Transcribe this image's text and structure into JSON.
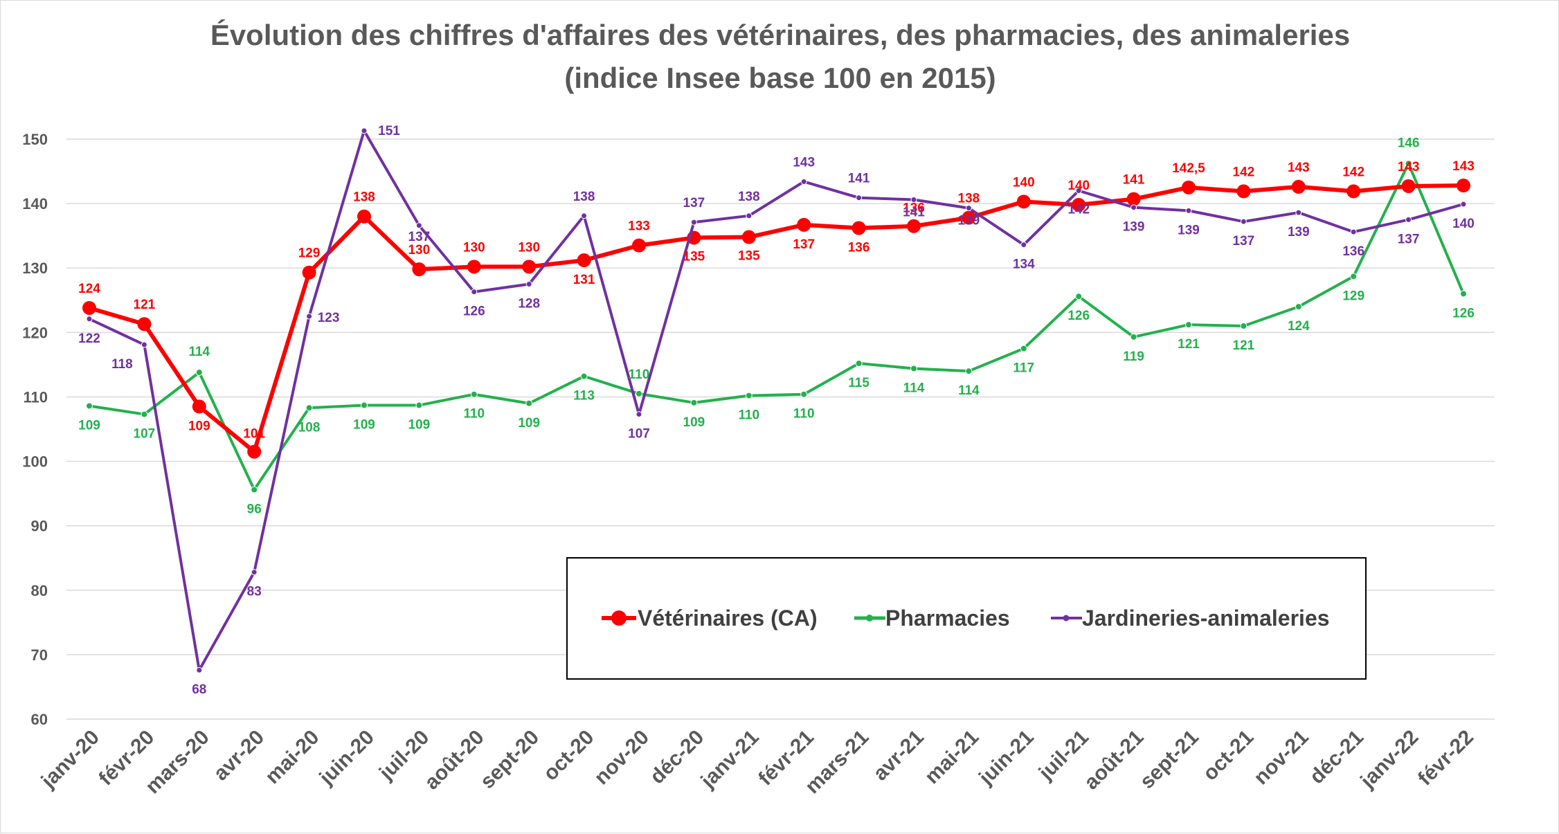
{
  "chart_data": {
    "type": "line",
    "title": "Évolution des chiffres d'affaires des vétérinaires, des pharmacies, des animaleries",
    "subtitle": "(indice Insee base 100 en 2015)",
    "categories": [
      "janv-20",
      "févr-20",
      "mars-20",
      "avr-20",
      "mai-20",
      "juin-20",
      "juil-20",
      "août-20",
      "sept-20",
      "oct-20",
      "nov-20",
      "déc-20",
      "janv-21",
      "févr-21",
      "mars-21",
      "avr-21",
      "mai-21",
      "juin-21",
      "juil-21",
      "août-21",
      "sept-21",
      "oct-21",
      "nov-21",
      "déc-21",
      "janv-22",
      "févr-22"
    ],
    "ylim": [
      60,
      150
    ],
    "yticks": [
      60,
      70,
      80,
      90,
      100,
      110,
      120,
      130,
      140,
      150
    ],
    "grid": true,
    "legend_position": "bottom-right",
    "series": [
      {
        "name": "Vétérinaires (CA)",
        "color": "#ff0000",
        "values": [
          123.8,
          121.3,
          108.5,
          101.5,
          129.3,
          138.0,
          129.8,
          130.2,
          130.2,
          131.2,
          133.5,
          134.7,
          134.8,
          136.7,
          136.2,
          136.5,
          137.8,
          140.3,
          139.8,
          140.7,
          142.5,
          141.9,
          142.6,
          141.9,
          142.7,
          142.8
        ],
        "labels": [
          "124",
          "121",
          "109",
          "101",
          "129",
          "138",
          "130",
          "130",
          "130",
          "131",
          "133",
          "135",
          "135",
          "137",
          "136",
          "136",
          "138",
          "140",
          "140",
          "141",
          "142,5",
          "142",
          "143",
          "142",
          "143",
          "143"
        ]
      },
      {
        "name": "Pharmacies",
        "color": "#22b14c",
        "values": [
          108.6,
          107.3,
          113.8,
          95.6,
          108.3,
          108.7,
          108.7,
          110.4,
          109.0,
          113.2,
          110.5,
          109.1,
          110.2,
          110.4,
          115.2,
          114.4,
          114.0,
          117.5,
          125.6,
          119.3,
          121.2,
          121.0,
          124.0,
          128.7,
          146.2,
          126.0
        ],
        "labels": [
          "109",
          "107",
          "114",
          "96",
          "108",
          "109",
          "109",
          "110",
          "109",
          "113",
          "110",
          "109",
          "110",
          "110",
          "115",
          "114",
          "114",
          "117",
          "126",
          "119",
          "121",
          "121",
          "124",
          "129",
          "146",
          "126"
        ]
      },
      {
        "name": "Jardineries-animaleries",
        "color": "#7030a0",
        "values": [
          122.1,
          118.1,
          67.6,
          82.8,
          122.5,
          151.3,
          136.6,
          126.3,
          127.5,
          138.1,
          107.3,
          137.1,
          138.1,
          143.4,
          140.9,
          140.6,
          139.3,
          133.6,
          142.0,
          139.4,
          138.9,
          137.2,
          138.6,
          135.6,
          137.5,
          139.9
        ],
        "labels": [
          "122",
          "118",
          "68",
          "83",
          "123",
          "151",
          "137",
          "126",
          "128",
          "138",
          "107",
          "137",
          "138",
          "143",
          "141",
          "141",
          "139",
          "134",
          "142",
          "139",
          "139",
          "137",
          "139",
          "136",
          "137",
          "140"
        ]
      }
    ]
  }
}
